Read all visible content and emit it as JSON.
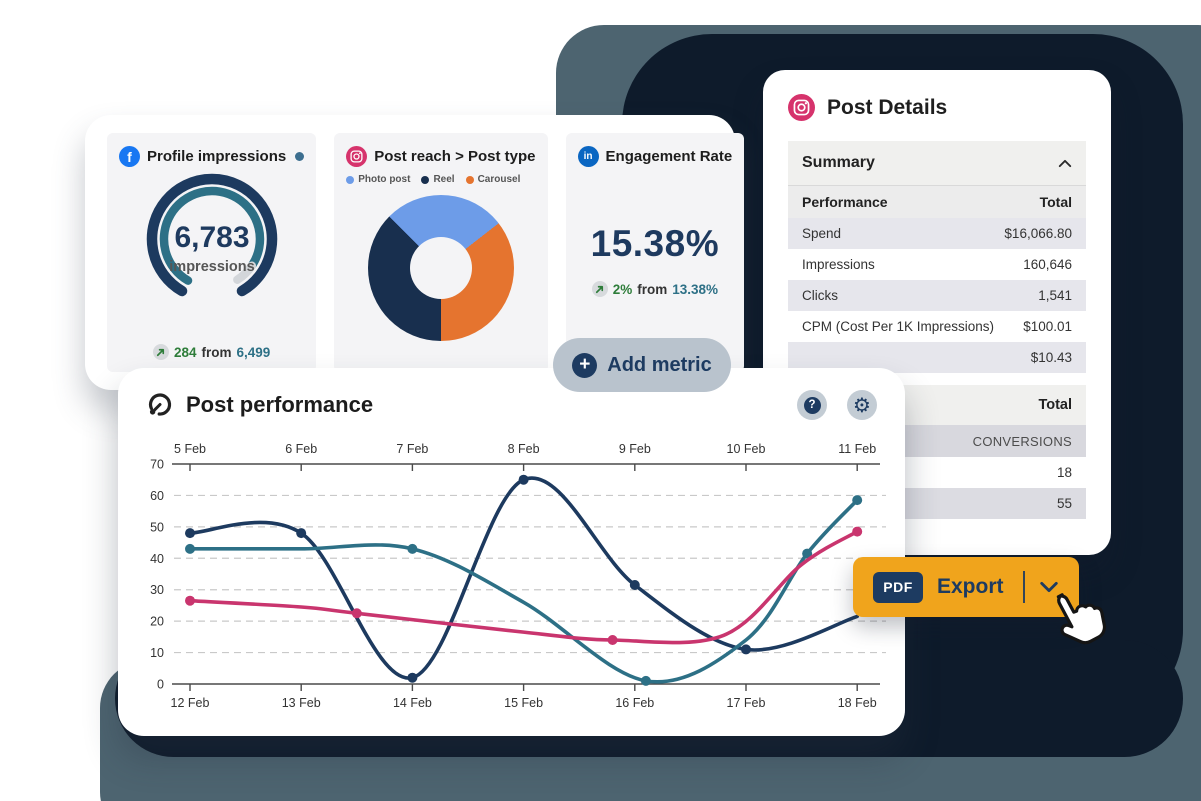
{
  "colors": {
    "navy_text": "#1e3a5f",
    "teal": "#2d7086",
    "pink": "#c9356e",
    "green": "#2e7d3a",
    "export_orange": "#f0a41c",
    "donut_blue": "#6d9ce8",
    "donut_orange": "#e5742f",
    "donut_navy": "#182f4e",
    "decor_navy": "#0e1b2b",
    "decor_slate": "#4d6470",
    "facebook_blue": "#1877f2",
    "linkedin_blue": "#0a66c2",
    "instagram_pink": "#d6336c"
  },
  "icons": {
    "facebook_glyph": "f",
    "linkedin_glyph": "in",
    "plus_glyph": "+",
    "question_glyph": "?",
    "gear_glyph": "⚙"
  },
  "metric_cards": {
    "facebook": {
      "title": "Profile impressions",
      "value": "6,783",
      "unit": "impressions",
      "trend_delta": "284",
      "trend_from": "from",
      "trend_prev": "6,499"
    },
    "instagram": {
      "title": "Post reach > Post type",
      "legend": [
        {
          "label": "Photo post"
        },
        {
          "label": "Reel"
        },
        {
          "label": "Carousel"
        }
      ]
    },
    "linkedin": {
      "title": "Engagement Rate",
      "value": "15.38%",
      "trend_delta": "2%",
      "trend_from": "from",
      "trend_prev": "13.38%"
    },
    "add_metric_label": "Add metric"
  },
  "post_details": {
    "title": "Post Details",
    "summary_label": "Summary",
    "perf_header": {
      "label": "Performance",
      "total": "Total"
    },
    "perf_rows": [
      {
        "label": "Spend",
        "value": "$16,066.80"
      },
      {
        "label": "Impressions",
        "value": "160,646"
      },
      {
        "label": "Clicks",
        "value": "1,541"
      },
      {
        "label": "CPM (Cost Per 1K Impressions)",
        "value": "$100.01"
      },
      {
        "label": "",
        "value": "$10.43"
      }
    ],
    "conversions_header": "Total",
    "conversions_rows": [
      {
        "value": "CONVERSIONS"
      },
      {
        "value": "18"
      },
      {
        "value": "55"
      }
    ]
  },
  "performance_card": {
    "title": "Post performance"
  },
  "export_button": {
    "badge": "PDF",
    "label": "Export"
  },
  "chart_data": [
    {
      "type": "gauge",
      "title": "Profile impressions",
      "value": 6783,
      "unit": "impressions",
      "change": {
        "delta": 284,
        "previous": 6499
      }
    },
    {
      "type": "pie",
      "donut": true,
      "title": "Post reach > Post type",
      "start_angle": 315,
      "segments": [
        {
          "label": "Photo post",
          "pct": 27,
          "color": "#6d9ce8"
        },
        {
          "label": "Carousel",
          "pct": 35.5,
          "color": "#e5742f"
        },
        {
          "label": "Reel",
          "pct": 37.5,
          "color": "#182f4e"
        }
      ],
      "legend_order": [
        "Photo post",
        "Reel",
        "Carousel"
      ]
    },
    {
      "type": "number",
      "title": "Engagement Rate",
      "value": "15.38%",
      "change": {
        "delta": "2%",
        "previous": "13.38%"
      }
    },
    {
      "type": "line",
      "title": "Post performance",
      "x_top_labels": [
        "5 Feb",
        "6 Feb",
        "7 Feb",
        "8 Feb",
        "9 Feb",
        "10 Feb",
        "11 Feb"
      ],
      "x_bottom_labels": [
        "12 Feb",
        "13 Feb",
        "14 Feb",
        "15 Feb",
        "16 Feb",
        "17 Feb",
        "18 Feb"
      ],
      "x_note": "x values 0..6 map to 12 Feb..18 Feb (bottom axis) / 5 Feb..11 Feb (top axis)",
      "y_ticks": [
        0,
        10,
        20,
        30,
        40,
        50,
        60,
        70
      ],
      "ylim": [
        0,
        70
      ],
      "grid": "dashed-horizontal",
      "series": [
        {
          "name": "navy",
          "color": "#1d3a5f",
          "points": [
            [
              0,
              48
            ],
            [
              1,
              48
            ],
            [
              2,
              2
            ],
            [
              3,
              65
            ],
            [
              4,
              31.5
            ],
            [
              5,
              11
            ],
            [
              6,
              21.5
            ]
          ],
          "markers": [
            [
              0,
              48
            ],
            [
              1,
              48
            ],
            [
              2,
              2
            ],
            [
              3,
              65
            ],
            [
              4,
              31.5
            ],
            [
              5,
              11
            ]
          ]
        },
        {
          "name": "teal",
          "color": "#2d7086",
          "points": [
            [
              0,
              43
            ],
            [
              1,
              43
            ],
            [
              2,
              43
            ],
            [
              3,
              26
            ],
            [
              4.1,
              1
            ],
            [
              5,
              14
            ],
            [
              5.55,
              41.5
            ],
            [
              6,
              58.5
            ]
          ],
          "markers": [
            [
              0,
              43
            ],
            [
              2,
              43
            ],
            [
              4.1,
              1
            ],
            [
              5.55,
              41.5
            ],
            [
              6,
              58.5
            ]
          ]
        },
        {
          "name": "pink",
          "color": "#c9356e",
          "points": [
            [
              0,
              26.5
            ],
            [
              1,
              24.5
            ],
            [
              1.5,
              22.5
            ],
            [
              3,
              16.5
            ],
            [
              3.8,
              14
            ],
            [
              4.8,
              15.5
            ],
            [
              5.5,
              38
            ],
            [
              6,
              48.5
            ]
          ],
          "markers": [
            [
              0,
              26.5
            ],
            [
              1.5,
              22.5
            ],
            [
              3.8,
              14
            ],
            [
              6,
              48.5
            ]
          ]
        }
      ]
    }
  ]
}
